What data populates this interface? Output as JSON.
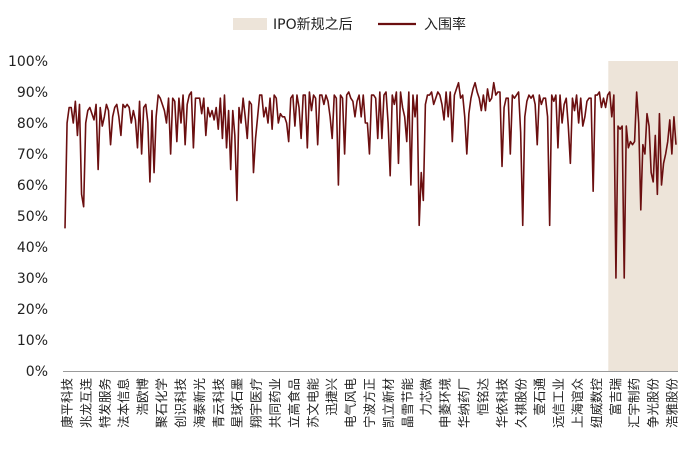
{
  "chart_data": {
    "type": "line",
    "title": "",
    "xlabel": "",
    "ylabel": "",
    "ylim": [
      0,
      100
    ],
    "y_unit": "%",
    "y_ticks": [
      0,
      10,
      20,
      30,
      40,
      50,
      60,
      70,
      80,
      90,
      100
    ],
    "legend": {
      "placement": "top-center",
      "items": [
        {
          "label": "IPO新规之后",
          "kind": "band",
          "color": "#ede4d9"
        },
        {
          "label": "入围率",
          "kind": "line",
          "color": "#6b0f10"
        }
      ]
    },
    "x_tick_labels": [
      "康平科技",
      "兆龙互连",
      "特发服务",
      "法本信息",
      "浩欧博",
      "聚石化学",
      "创识科技",
      "海泰新光",
      "青云科技",
      "星球石墨",
      "翔宇医疗",
      "共同药业",
      "立高食品",
      "苏文电能",
      "迅捷兴",
      "电气风电",
      "宁波方正",
      "凯立新材",
      "晶雪节能",
      "力芯微",
      "申菱环境",
      "华纳药厂",
      "恒铭达",
      "华依科技",
      "久祺股份",
      "壹石通",
      "远信工业",
      "上海谊众",
      "纽威数控",
      "富吉瑞",
      "汇宇制药",
      "争光股份",
      "浩雅股份"
    ],
    "series": [
      {
        "name": "入围率",
        "color": "#6b0f10",
        "values": [
          46,
          80,
          85,
          85,
          80,
          87,
          76,
          86,
          57,
          53,
          80,
          84,
          85,
          83,
          81,
          86,
          65,
          85,
          79,
          82,
          86,
          84,
          73,
          82,
          85,
          86,
          82,
          76,
          86,
          85,
          86,
          85,
          80,
          84,
          81,
          72,
          87,
          70,
          85,
          86,
          80,
          61,
          84,
          64,
          82,
          89,
          88,
          86,
          84,
          80,
          88,
          70,
          88,
          87,
          74,
          88,
          80,
          89,
          73,
          86,
          89,
          90,
          72,
          88,
          88,
          88,
          83,
          88,
          76,
          85,
          82,
          84,
          81,
          85,
          78,
          88,
          75,
          89,
          72,
          84,
          65,
          84,
          76,
          55,
          85,
          80,
          88,
          82,
          75,
          87,
          86,
          64,
          75,
          82,
          89,
          89,
          82,
          85,
          80,
          88,
          78,
          89,
          88,
          80,
          83,
          82,
          82,
          80,
          74,
          88,
          89,
          79,
          89,
          85,
          75,
          89,
          89,
          72,
          90,
          84,
          89,
          88,
          73,
          89,
          89,
          86,
          89,
          87,
          82,
          75,
          89,
          88,
          60,
          89,
          88,
          70,
          89,
          90,
          88,
          87,
          82,
          87,
          89,
          82,
          89,
          80,
          80,
          70,
          89,
          89,
          88,
          75,
          90,
          75,
          89,
          90,
          80,
          63,
          89,
          86,
          90,
          67,
          90,
          85,
          82,
          74,
          90,
          60,
          89,
          82,
          89,
          47,
          64,
          55,
          86,
          89,
          89,
          90,
          86,
          88,
          90,
          89,
          86,
          81,
          90,
          82,
          90,
          74,
          89,
          91,
          93,
          88,
          89,
          82,
          70,
          83,
          88,
          91,
          93,
          90,
          88,
          84,
          89,
          84,
          91,
          87,
          88,
          93,
          89,
          90,
          90,
          66,
          85,
          88,
          88,
          70,
          89,
          88,
          89,
          90,
          77,
          47,
          82,
          87,
          89,
          88,
          89,
          86,
          73,
          89,
          86,
          88,
          88,
          82,
          47,
          89,
          87,
          89,
          72,
          89,
          80,
          86,
          88,
          79,
          67,
          88,
          84,
          89,
          80,
          88,
          79,
          82,
          87,
          88,
          88,
          58,
          89,
          89,
          90,
          85,
          88,
          85,
          89,
          90,
          82,
          89,
          30,
          79,
          78,
          79,
          30,
          79,
          72,
          74,
          73,
          74,
          90,
          80,
          52,
          73,
          70,
          83,
          79,
          64,
          61,
          76,
          57,
          83,
          60,
          67,
          70,
          74,
          81,
          70,
          82,
          73
        ]
      }
    ],
    "shaded_region": {
      "label": "IPO新规之后",
      "start_label": "富吉瑞",
      "end_label": "浩雅股份"
    }
  }
}
